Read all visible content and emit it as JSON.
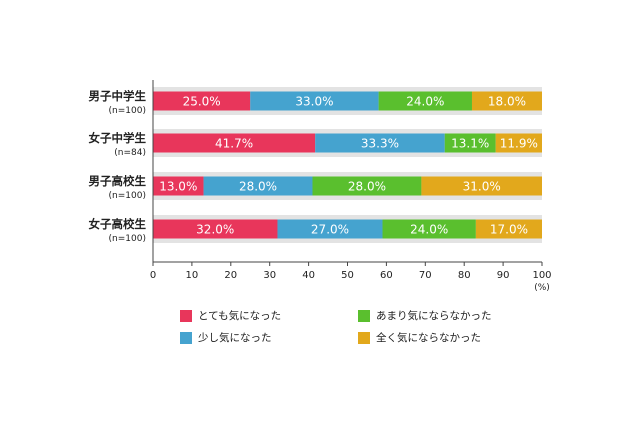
{
  "chart_data": {
    "type": "bar",
    "orientation": "horizontal",
    "stacked": true,
    "categories": [
      {
        "label": "男子中学生",
        "sub": "(n=100)"
      },
      {
        "label": "女子中学生",
        "sub": "(n=84)"
      },
      {
        "label": "男子高校生",
        "sub": "(n=100)"
      },
      {
        "label": "女子高校生",
        "sub": "(n=100)"
      }
    ],
    "series": [
      {
        "name": "とても気になった",
        "color": "#e8365b",
        "values": [
          25.0,
          41.7,
          13.0,
          32.0
        ],
        "labels": [
          "25.0%",
          "41.7%",
          "13.0%",
          "32.0%"
        ]
      },
      {
        "name": "少し気になった",
        "color": "#45a3cf",
        "values": [
          33.0,
          33.3,
          28.0,
          27.0
        ],
        "labels": [
          "33.0%",
          "33.3%",
          "28.0%",
          "27.0%"
        ]
      },
      {
        "name": "あまり気にならなかった",
        "color": "#5abf2e",
        "values": [
          24.0,
          13.1,
          28.0,
          24.0
        ],
        "labels": [
          "24.0%",
          "13.1%",
          "28.0%",
          "24.0%"
        ]
      },
      {
        "name": "全く気にならなかった",
        "color": "#e2a81c",
        "values": [
          18.0,
          11.9,
          31.0,
          17.0
        ],
        "labels": [
          "18.0%",
          "11.9%",
          "31.0%",
          "17.0%"
        ]
      }
    ],
    "xlim": [
      0,
      100
    ],
    "xticks": [
      "0",
      "10",
      "20",
      "30",
      "40",
      "50",
      "60",
      "70",
      "80",
      "90",
      "100"
    ],
    "xunit": "(%)",
    "grid": false,
    "legend_position": "bottom"
  }
}
